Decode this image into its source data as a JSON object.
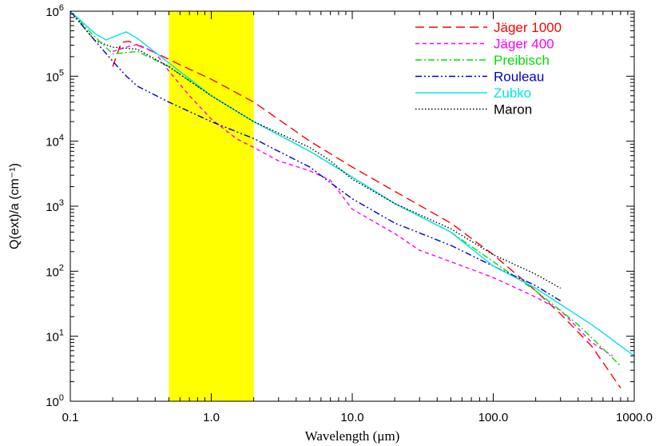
{
  "chart_data": {
    "type": "line",
    "xlabel": "Wavelength (μm)",
    "ylabel": "Q(ext)/a (cm⁻¹)",
    "xscale": "log",
    "yscale": "log",
    "xlim": [
      0.1,
      1000
    ],
    "ylim": [
      1,
      1000000
    ],
    "x_ticks": [
      {
        "value": 0.1,
        "label": "0.1"
      },
      {
        "value": 1,
        "label": "1.0"
      },
      {
        "value": 10,
        "label": "10.0"
      },
      {
        "value": 100,
        "label": "100.0"
      },
      {
        "value": 1000,
        "label": "1000.0"
      }
    ],
    "y_ticks": [
      {
        "value": 1,
        "base": "10",
        "exp": "0"
      },
      {
        "value": 10,
        "base": "10",
        "exp": "1"
      },
      {
        "value": 100,
        "base": "10",
        "exp": "2"
      },
      {
        "value": 1000,
        "base": "10",
        "exp": "3"
      },
      {
        "value": 10000,
        "base": "10",
        "exp": "4"
      },
      {
        "value": 100000,
        "base": "10",
        "exp": "5"
      },
      {
        "value": 1000000,
        "base": "10",
        "exp": "6"
      }
    ],
    "shaded_band": {
      "x_start": 0.5,
      "x_end": 2.0,
      "color": "#ffff00"
    },
    "grid": false,
    "legend_position": "top-right",
    "series": [
      {
        "name": "Jäger 1000",
        "color": "#ff0000",
        "dash": "dashed",
        "points": [
          [
            0.2,
            140000
          ],
          [
            0.23,
            330000
          ],
          [
            0.26,
            345000
          ],
          [
            0.3,
            300000
          ],
          [
            0.4,
            230000
          ],
          [
            0.6,
            150000
          ],
          [
            1.0,
            90000
          ],
          [
            2.0,
            40000
          ],
          [
            5.0,
            10000
          ],
          [
            10.0,
            4000
          ],
          [
            20.0,
            1700
          ],
          [
            50.0,
            550
          ],
          [
            100.0,
            180
          ],
          [
            200.0,
            50
          ],
          [
            300.0,
            22
          ],
          [
            500.0,
            7
          ],
          [
            800.0,
            1.6
          ]
        ]
      },
      {
        "name": "Jäger 400",
        "color": "#ff00ff",
        "dash": "short-dashed",
        "points": [
          [
            0.2,
            240000
          ],
          [
            0.25,
            280000
          ],
          [
            0.3,
            310000
          ],
          [
            0.4,
            230000
          ],
          [
            0.5,
            120000
          ],
          [
            0.7,
            50000
          ],
          [
            1.0,
            22000
          ],
          [
            1.5,
            11000
          ],
          [
            2.0,
            8000
          ],
          [
            3.0,
            5000
          ],
          [
            5.0,
            3500
          ],
          [
            7.0,
            2500
          ],
          [
            10.0,
            900
          ],
          [
            20.0,
            380
          ],
          [
            30.0,
            210
          ],
          [
            50.0,
            140
          ],
          [
            100.0,
            80
          ],
          [
            200.0,
            40
          ],
          [
            300.0,
            25
          ],
          [
            500.0,
            8
          ],
          [
            700.0,
            5
          ]
        ]
      },
      {
        "name": "Preibisch",
        "color": "#00e000",
        "dash": "dash-dot",
        "points": [
          [
            0.1,
            1000000
          ],
          [
            0.15,
            400000
          ],
          [
            0.2,
            220000
          ],
          [
            0.3,
            240000
          ],
          [
            0.5,
            140000
          ],
          [
            1.0,
            50000
          ],
          [
            2.0,
            20000
          ],
          [
            5.0,
            7000
          ],
          [
            7.0,
            4500
          ],
          [
            10.0,
            2800
          ],
          [
            20.0,
            1100
          ],
          [
            50.0,
            400
          ],
          [
            100.0,
            140
          ],
          [
            200.0,
            50
          ],
          [
            400.0,
            15
          ],
          [
            800.0,
            3.5
          ]
        ]
      },
      {
        "name": "Rouleau",
        "color": "#0000cc",
        "dash": "dash-dot-dot",
        "points": [
          [
            0.1,
            1000000
          ],
          [
            0.15,
            350000
          ],
          [
            0.2,
            170000
          ],
          [
            0.25,
            100000
          ],
          [
            0.3,
            70000
          ],
          [
            0.5,
            40000
          ],
          [
            1.0,
            20000
          ],
          [
            2.0,
            11000
          ],
          [
            3.0,
            7000
          ],
          [
            5.0,
            4000
          ],
          [
            7.0,
            2300
          ],
          [
            10.0,
            1300
          ],
          [
            20.0,
            550
          ],
          [
            50.0,
            250
          ],
          [
            100.0,
            120
          ],
          [
            200.0,
            60
          ],
          [
            300.0,
            35
          ]
        ]
      },
      {
        "name": "Zubko",
        "color": "#00e5e5",
        "dash": "solid",
        "points": [
          [
            0.1,
            1000000
          ],
          [
            0.15,
            450000
          ],
          [
            0.18,
            360000
          ],
          [
            0.2,
            400000
          ],
          [
            0.25,
            480000
          ],
          [
            0.3,
            380000
          ],
          [
            0.5,
            160000
          ],
          [
            1.0,
            50000
          ],
          [
            2.0,
            20000
          ],
          [
            5.0,
            7000
          ],
          [
            7.0,
            4500
          ],
          [
            10.0,
            2800
          ],
          [
            20.0,
            1100
          ],
          [
            50.0,
            400
          ],
          [
            100.0,
            120
          ],
          [
            200.0,
            55
          ],
          [
            500.0,
            15
          ],
          [
            1000.0,
            5
          ]
        ]
      },
      {
        "name": "Maron",
        "color": "#000000",
        "dash": "dotted",
        "points": [
          [
            0.1,
            1000000
          ],
          [
            0.15,
            350000
          ],
          [
            0.2,
            280000
          ],
          [
            0.3,
            260000
          ],
          [
            0.5,
            140000
          ],
          [
            1.0,
            50000
          ],
          [
            2.0,
            20000
          ],
          [
            5.0,
            8000
          ],
          [
            7.0,
            5000
          ],
          [
            10.0,
            2600
          ],
          [
            20.0,
            1100
          ],
          [
            50.0,
            450
          ],
          [
            100.0,
            180
          ],
          [
            200.0,
            90
          ],
          [
            300.0,
            55
          ]
        ]
      }
    ]
  }
}
